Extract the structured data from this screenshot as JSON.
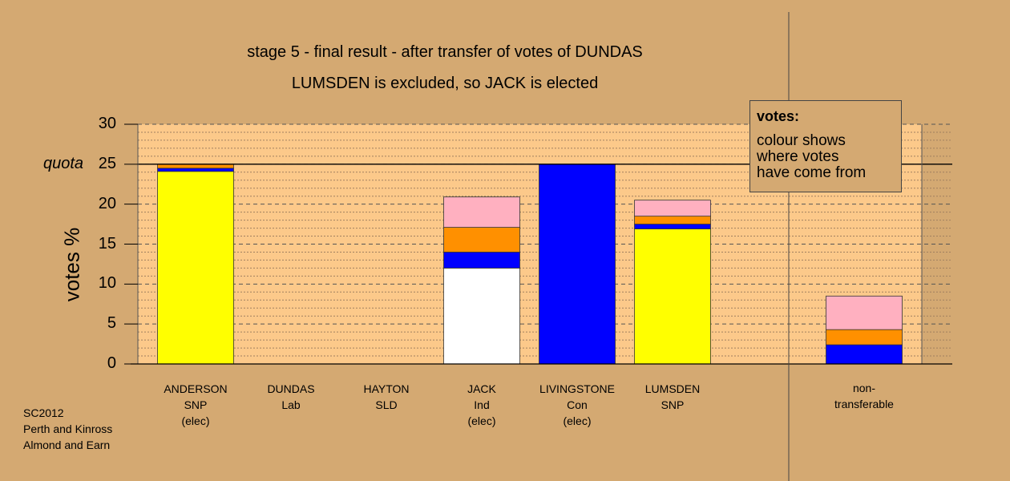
{
  "chart_data": {
    "type": "bar",
    "stacked": true,
    "title": "stage 5 - final result - after transfer of votes of DUNDAS",
    "subtitle": "LUMSDEN is excluded, so JACK is elected",
    "ylabel": "votes %",
    "ylim": [
      0,
      30
    ],
    "yticks": [
      0,
      5,
      10,
      15,
      20,
      25,
      30
    ],
    "quota": 25,
    "quota_label": "quota",
    "grid": true,
    "colors": {
      "white": "#ffffff",
      "yellow": "#ffff00",
      "blue": "#0000ff",
      "orange": "#ff9000",
      "pink": "#ffb0c0",
      "plot_bg": "#fcc98a",
      "page_bg": "#d4a972"
    },
    "categories": [
      {
        "lines": [
          "ANDERSON",
          "SNP",
          "(elec)"
        ],
        "segments": [
          {
            "color": "yellow",
            "value": 24.1
          },
          {
            "color": "blue",
            "value": 0.4
          },
          {
            "color": "orange",
            "value": 0.5
          }
        ]
      },
      {
        "lines": [
          "DUNDAS",
          "Lab"
        ],
        "segments": []
      },
      {
        "lines": [
          "HAYTON",
          "SLD"
        ],
        "segments": []
      },
      {
        "lines": [
          "JACK",
          "Ind",
          "(elec)"
        ],
        "segments": [
          {
            "color": "white",
            "value": 12
          },
          {
            "color": "blue",
            "value": 2
          },
          {
            "color": "orange",
            "value": 3.1
          },
          {
            "color": "pink",
            "value": 3.8
          }
        ]
      },
      {
        "lines": [
          "LIVINGSTONE",
          "Con",
          "(elec)"
        ],
        "segments": [
          {
            "color": "blue",
            "value": 25
          }
        ]
      },
      {
        "lines": [
          "LUMSDEN",
          "SNP"
        ],
        "segments": [
          {
            "color": "yellow",
            "value": 16.9
          },
          {
            "color": "blue",
            "value": 0.6
          },
          {
            "color": "orange",
            "value": 1
          },
          {
            "color": "pink",
            "value": 2
          }
        ]
      },
      {
        "lines": [
          "non-",
          "transferable"
        ],
        "segments": [
          {
            "color": "blue",
            "value": 2.4
          },
          {
            "color": "orange",
            "value": 1.9
          },
          {
            "color": "pink",
            "value": 4.2
          }
        ]
      }
    ],
    "legend": {
      "title": "votes:",
      "lines": [
        "colour shows",
        "where votes",
        "have come from"
      ],
      "placement": "top-right"
    }
  },
  "footnote": [
    "SC2012",
    "Perth and Kinross",
    "Almond and Earn"
  ]
}
